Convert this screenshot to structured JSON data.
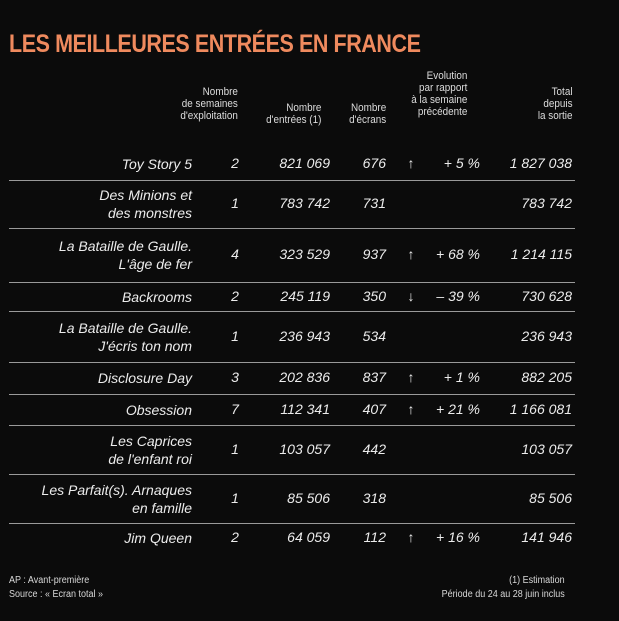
{
  "title": "LES MEILLEURES ENTRÉES EN FRANCE",
  "columns": {
    "weeks": [
      "Nombre",
      "de semaines",
      "d'exploitation"
    ],
    "entries": [
      "Nombre",
      "d'entrées (1)"
    ],
    "screens": [
      "Nombre",
      "d'écrans"
    ],
    "evolution": [
      "Evolution",
      "par rapport",
      "à la semaine",
      "précédente"
    ],
    "total": [
      "Total",
      "depuis",
      "la sortie"
    ]
  },
  "arrow_up": "↑",
  "arrow_down": "↓",
  "rows": [
    {
      "film": [
        "Toy Story 5"
      ],
      "weeks": "2",
      "entries": "821 069",
      "screens": "676",
      "arrow": "up",
      "evolution": "+ 5 %",
      "total": "1 827 038"
    },
    {
      "film": [
        "Des Minions et",
        "des monstres"
      ],
      "weeks": "1",
      "entries": "783 742",
      "screens": "731",
      "arrow": "",
      "evolution": "",
      "total": "783 742"
    },
    {
      "film": [
        "La Bataille de Gaulle.",
        "L'âge de fer"
      ],
      "weeks": "4",
      "entries": "323 529",
      "screens": "937",
      "arrow": "up",
      "evolution": "+ 68 %",
      "total": "1 214 115"
    },
    {
      "film": [
        "Backrooms"
      ],
      "weeks": "2",
      "entries": "245 119",
      "screens": "350",
      "arrow": "down",
      "evolution": "– 39 %",
      "total": "730 628"
    },
    {
      "film": [
        "La Bataille de Gaulle.",
        "J'écris ton nom"
      ],
      "weeks": "1",
      "entries": "236 943",
      "screens": "534",
      "arrow": "",
      "evolution": "",
      "total": "236 943"
    },
    {
      "film": [
        "Disclosure Day"
      ],
      "weeks": "3",
      "entries": "202 836",
      "screens": "837",
      "arrow": "up",
      "evolution": "+ 1 %",
      "total": "882 205"
    },
    {
      "film": [
        "Obsession"
      ],
      "weeks": "7",
      "entries": "112 341",
      "screens": "407",
      "arrow": "up",
      "evolution": "+ 21 %",
      "total": "1 166 081"
    },
    {
      "film": [
        "Les Caprices",
        "de l'enfant roi"
      ],
      "weeks": "1",
      "entries": "103 057",
      "screens": "442",
      "arrow": "",
      "evolution": "",
      "total": "103 057"
    },
    {
      "film": [
        "Les Parfait(s). Arnaques",
        "en famille"
      ],
      "weeks": "1",
      "entries": "85 506",
      "screens": "318",
      "arrow": "",
      "evolution": "",
      "total": "85 506"
    },
    {
      "film": [
        "Jim Queen"
      ],
      "weeks": "2",
      "entries": "64 059",
      "screens": "112",
      "arrow": "up",
      "evolution": "+ 16 %",
      "total": "141 946"
    }
  ],
  "footer": {
    "note_ap": "AP : Avant-première",
    "source": "Source : « Ecran total »",
    "estimation": "(1) Estimation",
    "period": "Période du 24 au 28 juin inclus"
  },
  "colors": {
    "title": "#ef8a5e",
    "background": "#0b0b0b",
    "text": "#ececec",
    "rule": "#9a9a9a"
  }
}
